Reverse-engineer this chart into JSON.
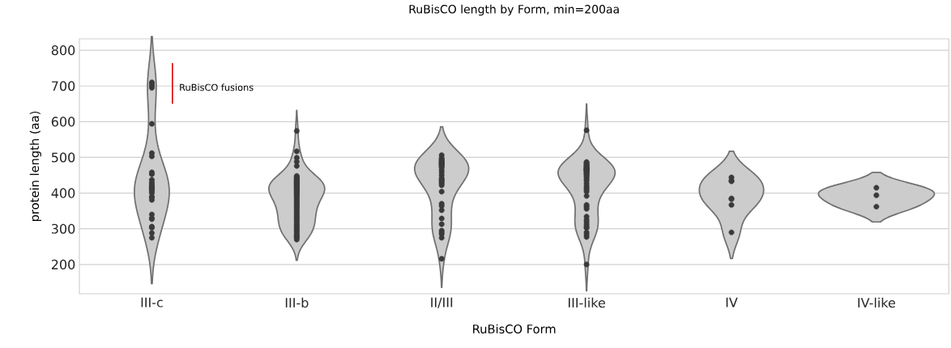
{
  "chart_data": {
    "type": "scatter",
    "title": "RuBisCO length by Form, min=200aa",
    "xlabel": "RuBisCO Form",
    "ylabel": "protein length (aa)",
    "categories": [
      "III-c",
      "III-b",
      "II/III",
      "III-like",
      "IV",
      "IV-like"
    ],
    "ylim": [
      118,
      832
    ],
    "yticks": [
      200,
      300,
      400,
      500,
      600,
      700,
      800
    ],
    "grid": "y",
    "marker": "circle",
    "annotations": [
      "RuBisCO fusions"
    ],
    "series": [
      {
        "color": "#3a3a3a",
        "x": [
          "III-c",
          "III-c",
          "III-c",
          "III-c",
          "III-c",
          "III-c",
          "III-c",
          "III-c",
          "III-c",
          "III-c",
          "III-c",
          "III-c",
          "III-c",
          "III-c",
          "III-c",
          "III-c",
          "III-c",
          "III-c",
          "III-c",
          "III-c",
          "III-c",
          "III-c",
          "III-c",
          "III-c",
          "III-c",
          "III-c",
          "III-c",
          "III-c",
          "III-c",
          "III-b",
          "III-b",
          "III-b",
          "III-b",
          "III-b",
          "III-b",
          "III-b",
          "III-b",
          "III-b",
          "III-b",
          "III-b",
          "III-b",
          "III-b",
          "III-b",
          "III-b",
          "III-b",
          "III-b",
          "III-b",
          "III-b",
          "III-b",
          "III-b",
          "III-b",
          "III-b",
          "III-b",
          "III-b",
          "III-b",
          "III-b",
          "III-b",
          "III-b",
          "III-b",
          "III-b",
          "III-b",
          "III-b",
          "III-b",
          "III-b",
          "III-b",
          "III-b",
          "III-b",
          "III-b",
          "III-b",
          "III-b",
          "III-b",
          "III-b",
          "III-b",
          "III-b",
          "III-b",
          "III-b",
          "III-b",
          "III-b",
          "III-b",
          "III-b",
          "III-b",
          "III-b",
          "III-b",
          "III-b",
          "III-b",
          "III-b",
          "III-b",
          "III-b",
          "III-b",
          "II/III",
          "II/III",
          "II/III",
          "II/III",
          "II/III",
          "II/III",
          "II/III",
          "II/III",
          "II/III",
          "II/III",
          "II/III",
          "II/III",
          "II/III",
          "II/III",
          "II/III",
          "II/III",
          "II/III",
          "II/III",
          "II/III",
          "II/III",
          "II/III",
          "II/III",
          "II/III",
          "II/III",
          "II/III",
          "II/III",
          "II/III",
          "II/III",
          "II/III",
          "II/III",
          "II/III",
          "II/III",
          "II/III",
          "III-like",
          "III-like",
          "III-like",
          "III-like",
          "III-like",
          "III-like",
          "III-like",
          "III-like",
          "III-like",
          "III-like",
          "III-like",
          "III-like",
          "III-like",
          "III-like",
          "III-like",
          "III-like",
          "III-like",
          "III-like",
          "III-like",
          "III-like",
          "III-like",
          "III-like",
          "III-like",
          "III-like",
          "III-like",
          "III-like",
          "III-like",
          "III-like",
          "III-like",
          "III-like",
          "III-like",
          "III-like",
          "III-like",
          "III-like",
          "III-like",
          "III-like",
          "III-like",
          "III-like",
          "III-like",
          "III-like",
          "III-like",
          "III-like",
          "IV",
          "IV",
          "IV",
          "IV",
          "IV",
          "IV",
          "IV",
          "IV-like",
          "IV-like",
          "IV-like"
        ],
        "values": [
          710,
          705,
          695,
          700,
          594,
          512,
          503,
          458,
          453,
          437,
          430,
          425,
          420,
          418,
          415,
          412,
          410,
          405,
          400,
          390,
          388,
          381,
          340,
          330,
          327,
          306,
          303,
          288,
          275,
          574,
          517,
          499,
          488,
          476,
          448,
          445,
          442,
          440,
          438,
          436,
          434,
          432,
          430,
          428,
          426,
          424,
          422,
          420,
          418,
          416,
          414,
          412,
          410,
          408,
          405,
          402,
          400,
          397,
          394,
          390,
          386,
          382,
          378,
          374,
          370,
          366,
          362,
          358,
          354,
          350,
          345,
          340,
          336,
          332,
          328,
          324,
          320,
          315,
          310,
          306,
          302,
          298,
          294,
          290,
          285,
          280,
          278,
          275,
          270,
          506,
          494,
          498,
          492,
          490,
          487,
          485,
          483,
          482,
          480,
          478,
          475,
          472,
          465,
          458,
          450,
          442,
          438,
          435,
          431,
          427,
          422,
          404,
          370,
          364,
          352,
          329,
          313,
          295,
          290,
          285,
          275,
          216,
          576,
          487,
          484,
          481,
          478,
          476,
          474,
          472,
          470,
          468,
          467,
          466,
          465,
          464,
          462,
          460,
          458,
          455,
          452,
          449,
          445,
          440,
          435,
          427,
          420,
          415,
          410,
          404,
          392,
          367,
          362,
          356,
          334,
          325,
          318,
          311,
          305,
          302,
          290,
          284,
          277,
          200,
          444,
          435,
          433,
          385,
          383,
          367,
          290,
          415,
          394,
          362
        ]
      }
    ]
  }
}
